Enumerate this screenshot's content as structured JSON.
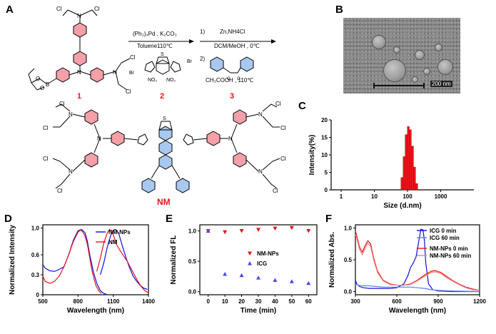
{
  "panels": {
    "A": "A",
    "B": "B",
    "C": "C",
    "D": "D",
    "E": "E",
    "F": "F"
  },
  "scheme": {
    "arrow1_above": "(Ph₃)₄Pd , K₂CO₃",
    "arrow1_below": "Toluene110℃",
    "step1_num": "1)",
    "step1_text": "Zn,NH4Cl",
    "step1_below": "DCM/MeOH , 0℃",
    "step2_num": "2)",
    "step3_text": "CH₃COOH , 110℃",
    "compound1": "1",
    "compound2": "2",
    "compound3": "3",
    "product": "NM",
    "cl": "Cl",
    "n": "N",
    "b": "B",
    "o": "O",
    "s": "S",
    "br": "Br",
    "no2": "NO₂"
  },
  "tem": {
    "scale_label": "200 nm"
  },
  "colors": {
    "red": "#e8141a",
    "blue": "#1010e0",
    "lightred": "#f08080",
    "lightblue": "#5a7df0",
    "ring_red": "#f4a0a8",
    "ring_blue": "#a8c8f0"
  },
  "chart_data": [
    {
      "panel": "C",
      "type": "bar",
      "title": "",
      "xlabel": "Size (d.nm)",
      "ylabel": "Intensity(%)",
      "xscale": "log",
      "xlim": [
        0.5,
        10000
      ],
      "ylim": [
        0,
        20
      ],
      "xticks": [
        1,
        10,
        100,
        1000
      ],
      "xtick_labels": [
        "1",
        "10",
        "100",
        "1000"
      ],
      "yticks": [
        0,
        5,
        10,
        15,
        20
      ],
      "ytick_labels": [
        "0",
        "5",
        "10",
        "15",
        "20"
      ],
      "x": [
        68,
        79,
        91,
        106,
        122,
        142,
        164,
        190
      ],
      "values": [
        3.5,
        9.5,
        15.8,
        18.1,
        17.2,
        12.5,
        6.5,
        1.8
      ],
      "color": "#e8141a"
    },
    {
      "panel": "D",
      "type": "line",
      "xlabel": "Wavelength (nm)",
      "ylabel": "Normalized Intensity",
      "xlim": [
        500,
        1400
      ],
      "ylim": [
        0,
        1.05
      ],
      "xticks": [
        500,
        800,
        1100,
        1400
      ],
      "xtick_labels": [
        "500",
        "800",
        "1100",
        "1400"
      ],
      "yticks": [
        0,
        0.3,
        0.6,
        1.0
      ],
      "ytick_labels": [
        "0",
        "0.3",
        "0.6",
        "1.0"
      ],
      "legend": "top-right",
      "series": [
        {
          "name": "NM-NPs",
          "color": "#1010e0",
          "x": [
            500,
            520,
            560,
            600,
            640,
            680,
            720,
            760,
            800,
            830,
            860,
            880,
            900,
            930,
            960,
            990,
            1020,
            1050
          ],
          "y": [
            0.45,
            0.4,
            0.36,
            0.35,
            0.38,
            0.42,
            0.6,
            0.82,
            0.96,
            0.98,
            0.93,
            0.8,
            0.6,
            0.35,
            0.17,
            0.06,
            0.02,
            0.0
          ]
        },
        {
          "name": "NM-NPs",
          "color": "#1010e0",
          "x": [
            990,
            1020,
            1050,
            1080,
            1110,
            1130,
            1150,
            1180,
            1210,
            1240,
            1270,
            1300,
            1330,
            1360,
            1390
          ],
          "y": [
            0.3,
            0.48,
            0.72,
            0.9,
            0.98,
            0.97,
            0.9,
            0.72,
            0.55,
            0.4,
            0.28,
            0.2,
            0.14,
            0.1,
            0.08
          ]
        },
        {
          "name": "NM",
          "color": "#e8141a",
          "x": [
            500,
            520,
            560,
            600,
            640,
            680,
            720,
            760,
            800,
            820,
            840,
            860,
            880,
            900,
            920,
            950,
            980,
            1000
          ],
          "y": [
            0.28,
            0.2,
            0.17,
            0.2,
            0.28,
            0.42,
            0.6,
            0.8,
            0.94,
            0.97,
            0.95,
            0.88,
            0.75,
            0.55,
            0.35,
            0.15,
            0.05,
            0.02
          ]
        },
        {
          "name": "NM",
          "color": "#e8141a",
          "x": [
            960,
            990,
            1020,
            1050,
            1070,
            1090,
            1110,
            1130,
            1160,
            1190,
            1220,
            1250,
            1280,
            1310,
            1340,
            1370,
            1400
          ],
          "y": [
            0.35,
            0.55,
            0.78,
            0.93,
            0.98,
            0.95,
            0.85,
            0.75,
            0.66,
            0.58,
            0.5,
            0.4,
            0.3,
            0.2,
            0.12,
            0.06,
            0.03
          ]
        }
      ]
    },
    {
      "panel": "E",
      "type": "scatter",
      "xlabel": "Time (min)",
      "ylabel": "Normalized FL",
      "xlim": [
        -5,
        65
      ],
      "ylim": [
        -0.05,
        1.1
      ],
      "xticks": [
        0,
        10,
        20,
        30,
        40,
        50,
        60
      ],
      "xtick_labels": [
        "0",
        "10",
        "20",
        "30",
        "40",
        "50",
        "60"
      ],
      "yticks": [
        0.0,
        0.5,
        1.0
      ],
      "ytick_labels": [
        "0.0",
        "0.5",
        "1.0"
      ],
      "legend": "center-right",
      "series": [
        {
          "name": "NM-NPs",
          "marker": "triangle-down",
          "color": "#e8141a",
          "x": [
            0,
            10,
            20,
            30,
            40,
            50,
            60
          ],
          "y": [
            1.0,
            0.98,
            1.0,
            1.02,
            1.04,
            1.05,
            1.0
          ]
        },
        {
          "name": "ICG",
          "marker": "triangle-up",
          "color": "#4848e8",
          "x": [
            0,
            10,
            20,
            30,
            40,
            50,
            60
          ],
          "y": [
            1.0,
            0.29,
            0.27,
            0.23,
            0.19,
            0.17,
            0.14
          ]
        }
      ]
    },
    {
      "panel": "F",
      "type": "line",
      "xlabel": "Wavelength (nm)",
      "ylabel": "Normalized Abs.",
      "xlim": [
        300,
        1200
      ],
      "ylim": [
        -0.05,
        1.05
      ],
      "xticks": [
        300,
        600,
        900,
        1200
      ],
      "xtick_labels": [
        "300",
        "600",
        "900",
        "1200"
      ],
      "yticks": [
        0.0,
        0.5,
        1.0
      ],
      "ytick_labels": [
        "0.0",
        "0.5",
        "1.0"
      ],
      "legend": "top-right",
      "series": [
        {
          "name": "ICG 0 min",
          "color": "#1010e0",
          "x": [
            300,
            310,
            330,
            360,
            400,
            450,
            500,
            550,
            600,
            650,
            680,
            700,
            720,
            740,
            760,
            775,
            790,
            800,
            810,
            830,
            860,
            900,
            1000,
            1200
          ],
          "y": [
            0.18,
            0.12,
            0.08,
            0.06,
            0.05,
            0.05,
            0.05,
            0.05,
            0.06,
            0.12,
            0.25,
            0.38,
            0.45,
            0.55,
            0.8,
            0.98,
            0.97,
            0.8,
            0.45,
            0.12,
            0.03,
            0.01,
            0.0,
            0.0
          ]
        },
        {
          "name": "ICG 60 min",
          "color": "#5a7df0",
          "x": [
            300,
            320,
            360,
            400,
            450,
            500,
            550,
            600,
            650,
            700,
            750,
            800,
            850,
            900,
            1000,
            1200
          ],
          "y": [
            0.12,
            0.1,
            0.09,
            0.09,
            0.08,
            0.07,
            0.07,
            0.07,
            0.07,
            0.07,
            0.06,
            0.05,
            0.03,
            0.02,
            0.01,
            0.0
          ]
        },
        {
          "name": "NM-NPs 0 min",
          "color": "#e8141a",
          "x": [
            300,
            310,
            330,
            350,
            370,
            390,
            410,
            430,
            460,
            500,
            550,
            600,
            650,
            700,
            750,
            800,
            850,
            880,
            920,
            960,
            1000,
            1050,
            1100,
            1150,
            1200
          ],
          "y": [
            0.95,
            0.88,
            0.7,
            0.62,
            0.72,
            0.8,
            0.75,
            0.55,
            0.32,
            0.18,
            0.12,
            0.1,
            0.1,
            0.12,
            0.18,
            0.26,
            0.32,
            0.33,
            0.3,
            0.24,
            0.18,
            0.12,
            0.07,
            0.04,
            0.02
          ]
        },
        {
          "name": "NM-NPs 60 min",
          "color": "#f08080",
          "x": [
            300,
            310,
            330,
            350,
            370,
            390,
            410,
            430,
            460,
            500,
            550,
            600,
            650,
            700,
            750,
            800,
            850,
            880,
            920,
            960,
            1000,
            1050,
            1100,
            1150,
            1200
          ],
          "y": [
            0.9,
            0.84,
            0.66,
            0.58,
            0.68,
            0.76,
            0.71,
            0.52,
            0.3,
            0.17,
            0.11,
            0.1,
            0.1,
            0.11,
            0.17,
            0.24,
            0.3,
            0.31,
            0.28,
            0.22,
            0.17,
            0.11,
            0.06,
            0.03,
            0.02
          ]
        }
      ]
    }
  ]
}
